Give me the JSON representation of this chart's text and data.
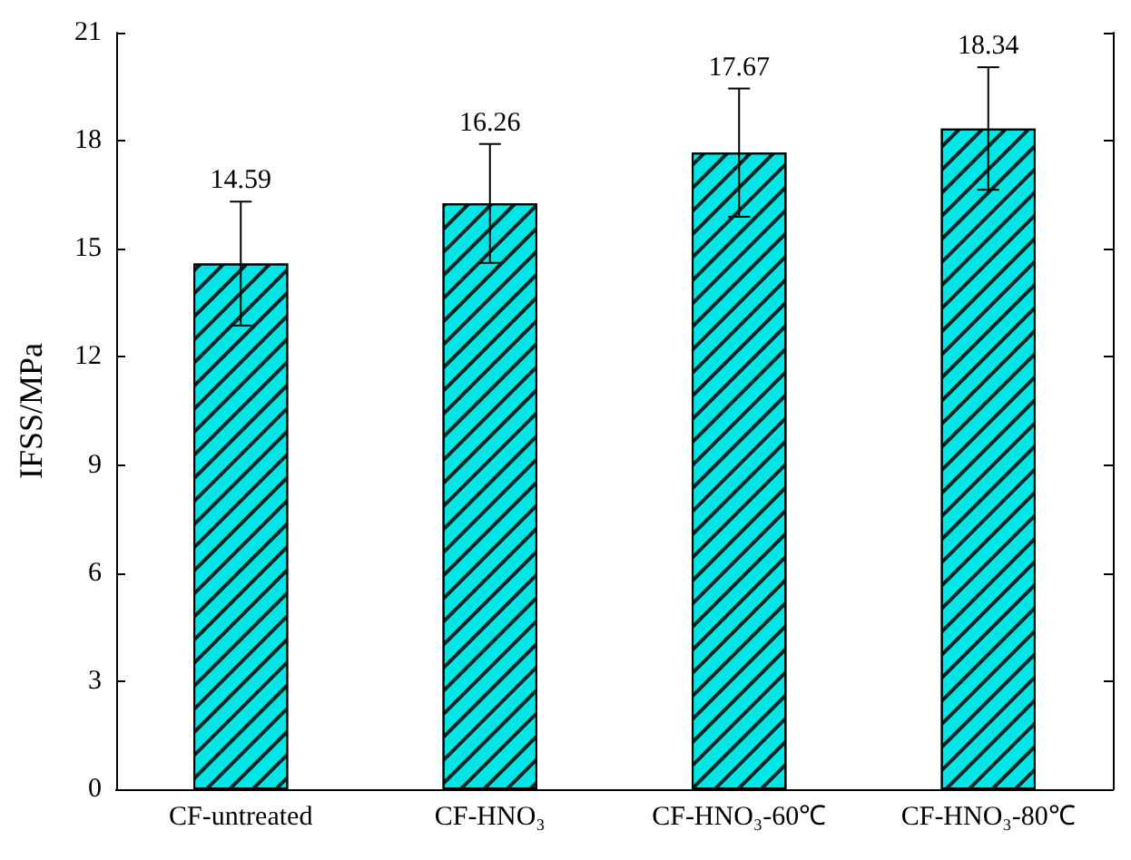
{
  "chart_data": {
    "type": "bar",
    "ylabel": "IFSS/MPa",
    "categories": [
      "CF-untreated",
      "CF-HNO₃",
      "CF-HNO₃-60℃",
      "CF-HNO₃-80℃"
    ],
    "values": [
      14.59,
      16.26,
      17.67,
      18.34
    ],
    "errors": [
      1.72,
      1.65,
      1.78,
      1.7
    ],
    "color": "#00e5e5",
    "ylim": [
      0,
      21
    ],
    "yticks": [
      0,
      3,
      6,
      9,
      12,
      15,
      18,
      21
    ],
    "data_labels": true
  }
}
